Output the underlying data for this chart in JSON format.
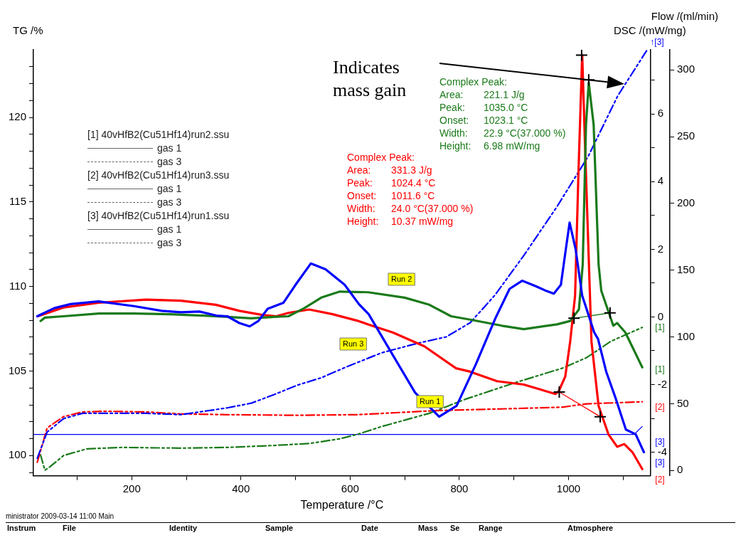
{
  "chart_data": {
    "type": "line",
    "xlabel": "Temperature /°C",
    "ylabel": "TG /%",
    "y2label": "DSC /(mW/mg)",
    "y3label": "Flow /(ml/min)",
    "xlim": [
      20,
      1150
    ],
    "xticks": [
      {
        "value": 100,
        "label": null
      },
      200,
      {
        "value": 300,
        "label": null
      },
      400,
      {
        "value": 500,
        "label": null
      },
      600,
      {
        "value": 700,
        "label": null
      },
      800,
      {
        "value": 900,
        "label": null
      },
      1000,
      {
        "value": 1100,
        "label": null
      }
    ],
    "ylim": [
      98.8,
      124
    ],
    "yticks": [
      {
        "value": 99,
        "label": null
      },
      100,
      {
        "value": 101,
        "label": null
      },
      {
        "value": 102,
        "label": null
      },
      {
        "value": 103,
        "label": null
      },
      {
        "value": 104,
        "label": null
      },
      105,
      {
        "value": 106,
        "label": null
      },
      {
        "value": 107,
        "label": null
      },
      {
        "value": 108,
        "label": null
      },
      {
        "value": 109,
        "label": null
      },
      110,
      {
        "value": 111,
        "label": null
      },
      {
        "value": 112,
        "label": null
      },
      {
        "value": 113,
        "label": null
      },
      {
        "value": 114,
        "label": null
      },
      115,
      {
        "value": 116,
        "label": null
      },
      {
        "value": 117,
        "label": null
      },
      {
        "value": 118,
        "label": null
      },
      {
        "value": 119,
        "label": null
      },
      120,
      {
        "value": 121,
        "label": null
      },
      {
        "value": 122,
        "label": null
      },
      {
        "value": 123,
        "label": null
      }
    ],
    "y2lim": [
      -4.7,
      7.9
    ],
    "y2ticks": [
      -4,
      {
        "value": -3,
        "label": null
      },
      -2,
      {
        "value": -1,
        "label": null
      },
      0,
      {
        "value": 1,
        "label": null
      },
      2,
      {
        "value": 3,
        "label": null
      },
      4,
      {
        "value": 5,
        "label": null
      },
      6,
      {
        "value": 7,
        "label": null
      }
    ],
    "y3lim": [
      -4,
      315
    ],
    "y3ticks": [
      0,
      50,
      100,
      150,
      200,
      250,
      300
    ],
    "series": [
      {
        "name": "Run 1",
        "type": "line",
        "axis": "y2",
        "color": "#0000ff",
        "line_style": "solid",
        "x": [
          27,
          58,
          88,
          139,
          204,
          255,
          290,
          324,
          355,
          375,
          397,
          416,
          432,
          449,
          478,
          500,
          528,
          555,
          590,
          616,
          634,
          679,
          719,
          763,
          795,
          830,
          866,
          892,
          915,
          940,
          959,
          973,
          986,
          995,
          1002,
          1013,
          1025,
          1047,
          1054,
          1069,
          1087,
          1105,
          1123,
          1138
        ],
        "values": [
          0.02,
          0.26,
          0.38,
          0.46,
          0.32,
          0.18,
          0.14,
          0.16,
          0.04,
          0.02,
          -0.18,
          -0.28,
          -0.12,
          0.24,
          0.42,
          0.95,
          1.58,
          1.41,
          0.95,
          0.38,
          0.08,
          -1.15,
          -2.24,
          -2.95,
          -2.63,
          -1.41,
          -0.04,
          0.83,
          1.07,
          0.91,
          0.77,
          0.69,
          0.95,
          2.0,
          2.79,
          2.0,
          0.63,
          -0.46,
          -0.65,
          -1.62,
          -2.44,
          -3.33,
          -3.47,
          -4.0
        ]
      },
      {
        "name": "Run 2",
        "type": "line",
        "axis": "y2",
        "color": "#1a7a1a",
        "line_style": "solid",
        "x": [
          33,
          41,
          75,
          140,
          204,
          268,
          332,
          375,
          419,
          461,
          487,
          516,
          547,
          581,
          633,
          700,
          745,
          785,
          820,
          878,
          918,
          979,
          1003,
          1019,
          1026,
          1032,
          1037,
          1046,
          1055,
          1060,
          1073,
          1082,
          1089,
          1104,
          1135
        ],
        "values": [
          -0.12,
          -0.02,
          0.02,
          0.1,
          0.1,
          0.08,
          0.04,
          0,
          -0.04,
          0,
          0.02,
          0.26,
          0.57,
          0.75,
          0.73,
          0.57,
          0.36,
          0.02,
          -0.08,
          -0.26,
          -0.36,
          -0.22,
          -0.12,
          0.22,
          1.56,
          5.68,
          6.93,
          5.68,
          1.56,
          0.77,
          0.16,
          -0.26,
          -0.18,
          -0.46,
          -1.49
        ]
      },
      {
        "name": "Run 3",
        "type": "line",
        "axis": "y2",
        "color": "#ff0000",
        "line_style": "solid",
        "x": [
          28,
          75,
          140,
          226,
          290,
          354,
          397,
          439,
          465,
          487,
          525,
          568,
          615,
          633,
          678,
          736,
          794,
          820,
          869,
          918,
          976,
          982,
          994,
          1003,
          1012,
          1018,
          1025,
          1032,
          1042,
          1055,
          1073,
          1089,
          1102,
          1117,
          1135
        ],
        "values": [
          0.02,
          0.28,
          0.42,
          0.51,
          0.48,
          0.36,
          0.18,
          0.06,
          0.02,
          0.12,
          0.22,
          0.08,
          -0.12,
          -0.22,
          -0.46,
          -0.87,
          -1.52,
          -1.62,
          -1.9,
          -2.0,
          -2.28,
          -2.2,
          -1.76,
          -0.73,
          0.63,
          4.18,
          7.74,
          4.18,
          -0.73,
          -2.63,
          -3.47,
          -3.84,
          -3.76,
          -4.0,
          -4.5
        ]
      },
      {
        "type": "line",
        "axis": "y",
        "color": "#0000ff",
        "line_style": "dashed",
        "x": [
          27,
          45,
          75,
          110,
          161,
          226,
          290,
          375,
          419,
          461,
          504,
          547,
          590,
          657,
          722,
          776,
          820,
          865,
          918,
          978,
          1036,
          1090,
          1144
        ],
        "values": [
          99.84,
          101.39,
          102.18,
          102.5,
          102.5,
          102.5,
          102.42,
          102.82,
          103.1,
          103.61,
          104.17,
          104.6,
          105.2,
          106.07,
          106.63,
          107.02,
          107.86,
          109.48,
          111.83,
          114.68,
          117.7,
          121.27,
          124.0
        ]
      },
      {
        "type": "line",
        "axis": "y",
        "color": "#ff0000",
        "line_style": "dashed",
        "x": [
          27,
          45,
          75,
          110,
          152,
          226,
          290,
          375,
          504,
          615,
          758,
          900,
          988,
          1033,
          1135
        ],
        "values": [
          99.6,
          101.63,
          102.3,
          102.58,
          102.62,
          102.58,
          102.46,
          102.42,
          102.38,
          102.42,
          102.66,
          102.78,
          102.86,
          103.06,
          103.18
        ]
      },
      {
        "type": "line",
        "axis": "y",
        "color": "#1a7a1a",
        "line_style": "dashed",
        "x": [
          33,
          41,
          50,
          75,
          118,
          182,
          290,
          375,
          461,
          525,
          581,
          615,
          657,
          745,
          811,
          900,
          988,
          1033,
          1077,
          1135
        ],
        "values": [
          100.04,
          99.13,
          99.33,
          100.0,
          100.4,
          100.48,
          100.44,
          100.48,
          100.6,
          100.71,
          100.99,
          101.27,
          101.71,
          102.5,
          103.33,
          104.29,
          105.16,
          105.79,
          106.75,
          107.58
        ]
      },
      {
        "type": "line",
        "axis": "y3",
        "color": "#0000ff",
        "line_style": "solid",
        "x": [
          20,
          1120,
          1135
        ],
        "values": [
          27,
          27,
          33
        ]
      },
      {
        "type": "line",
        "axis": "y2",
        "color": "#ff0000",
        "line_style": "solid",
        "x": [
          983,
          1058
        ],
        "values": [
          -2.22,
          -2.95
        ]
      },
      {
        "type": "line",
        "axis": "y2",
        "color": "#1a7a1a",
        "line_style": "solid",
        "x": [
          1010,
          1076
        ],
        "values": [
          -0.04,
          0.12
        ]
      },
      {
        "type": "scatter",
        "axis": "y2",
        "color": "#000000",
        "marker": "cross",
        "x": [
          1024,
          1037,
          983,
          1058,
          1010,
          1076
        ],
        "values": [
          7.74,
          7.01,
          -2.22,
          -2.95,
          -0.04,
          0.12
        ]
      }
    ],
    "annotations": [
      "Indicates\nmass gain",
      "Complex Peak:\nArea: 331.3 J/g\nPeak: 1024.4 °C\nOnset: 1011.6 °C\nWidth: 24.0 °C(37.000 %)\nHeight: 10.37 mW/mg",
      "Complex Peak:\nArea: 221.1 J/g\nPeak: 1035.0 °C\nOnset: 1023.1 °C\nWidth: 22.9 °C(37.000 %)\nHeight: 6.98 mW/mg",
      "[1] 40vHfB2(Cu51Hf14)run2.ssu",
      "gas 1",
      "gas 3",
      "[2] 40vHfB2(Cu51Hf14)run3.ssu",
      "gas 1",
      "gas 3",
      "[3] 40vHfB2(Cu51Hf14)run1.ssu",
      "gas 1",
      "gas 3",
      "[1]",
      "[1]",
      "[2]",
      "[3]",
      "[3]",
      "[2]",
      "↑[3]",
      "ministrator  2009-03-14 11:00  Main",
      "Instrum",
      "File",
      "Identity",
      "Sample",
      "Date",
      "Mass",
      "Se",
      "Range",
      "Atmosphere"
    ]
  }
}
